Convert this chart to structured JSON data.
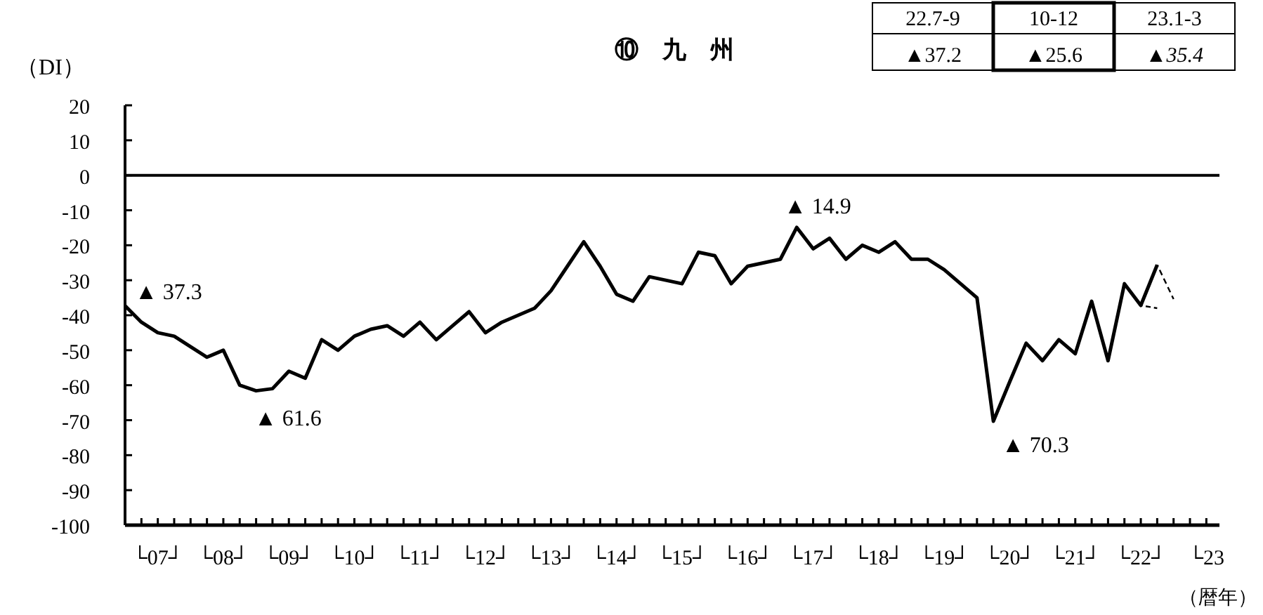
{
  "chart_data": {
    "type": "line",
    "title": "⑩　九　州",
    "ylabel": "（DI）",
    "xlabel": "（暦年）",
    "ylim": [
      -100,
      20
    ],
    "yticks": [
      -100,
      -90,
      -80,
      -70,
      -60,
      -50,
      -40,
      -30,
      -20,
      -10,
      0,
      10,
      20
    ],
    "categories": [
      null,
      null,
      "└07┘",
      null,
      null,
      null,
      "└08┘",
      null,
      null,
      null,
      "└09┘",
      null,
      null,
      null,
      "└10┘",
      null,
      null,
      null,
      "└11┘",
      null,
      null,
      null,
      "└12┘",
      null,
      null,
      null,
      "└13┘",
      null,
      null,
      null,
      "└14┘",
      null,
      null,
      null,
      "└15┘",
      null,
      null,
      null,
      "└16┘",
      null,
      null,
      null,
      "└17┘",
      null,
      null,
      null,
      "└18┘",
      null,
      null,
      null,
      "└19┘",
      null,
      null,
      null,
      "└20┘",
      null,
      null,
      null,
      "└21┘",
      null,
      null,
      null,
      "└22┘",
      null,
      null,
      null,
      "└23"
    ],
    "ref_lines": [
      {
        "axis": "y",
        "value": 0,
        "color": "#000000"
      }
    ],
    "legend": false,
    "marker": "none",
    "series": [
      {
        "color": "#000000",
        "line_style": "solid",
        "values": [
          -37.3,
          -42,
          -45,
          -46,
          -49,
          -52,
          -50,
          -60,
          -61.6,
          -61,
          -56,
          -58,
          -47,
          -50,
          -46,
          -44,
          -43,
          -46,
          -42,
          -47,
          -43,
          -39,
          -45,
          -42,
          -40,
          -38,
          -33,
          -26,
          -19,
          -26,
          -34,
          -36,
          -29,
          -30,
          -31,
          -22,
          -23,
          -31,
          -26,
          -25,
          -24,
          -14.9,
          -21,
          -18,
          -24,
          -20,
          -22,
          -19,
          -24,
          -24,
          -27,
          -31,
          -35,
          -70.3,
          -59,
          -48,
          -53,
          -47,
          -51,
          -36,
          -53,
          -31,
          -37.2,
          -25.6,
          null,
          null,
          null
        ]
      },
      {
        "color": "#000000",
        "line_style": "dashed",
        "values": [
          null,
          null,
          null,
          null,
          null,
          null,
          null,
          null,
          null,
          null,
          null,
          null,
          null,
          null,
          null,
          null,
          null,
          null,
          null,
          null,
          null,
          null,
          null,
          null,
          null,
          null,
          null,
          null,
          null,
          null,
          null,
          null,
          null,
          null,
          null,
          null,
          null,
          null,
          null,
          null,
          null,
          null,
          null,
          null,
          null,
          null,
          null,
          null,
          null,
          null,
          null,
          null,
          null,
          null,
          null,
          null,
          null,
          null,
          null,
          null,
          null,
          null,
          -37.2,
          -38,
          null,
          null,
          null
        ]
      },
      {
        "color": "#000000",
        "line_style": "dashed",
        "values": [
          null,
          null,
          null,
          null,
          null,
          null,
          null,
          null,
          null,
          null,
          null,
          null,
          null,
          null,
          null,
          null,
          null,
          null,
          null,
          null,
          null,
          null,
          null,
          null,
          null,
          null,
          null,
          null,
          null,
          null,
          null,
          null,
          null,
          null,
          null,
          null,
          null,
          null,
          null,
          null,
          null,
          null,
          null,
          null,
          null,
          null,
          null,
          null,
          null,
          null,
          null,
          null,
          null,
          null,
          null,
          null,
          null,
          null,
          null,
          null,
          null,
          null,
          null,
          -25.6,
          -35.4,
          null,
          null
        ]
      }
    ],
    "annotations": [
      "▲ 37.3",
      "▲ 61.6",
      "▲ 14.9",
      "▲ 70.3",
      "22.7-9",
      "10-12",
      "23.1-3",
      "▲37.2",
      "▲25.6",
      "▲*35.4*"
    ]
  }
}
